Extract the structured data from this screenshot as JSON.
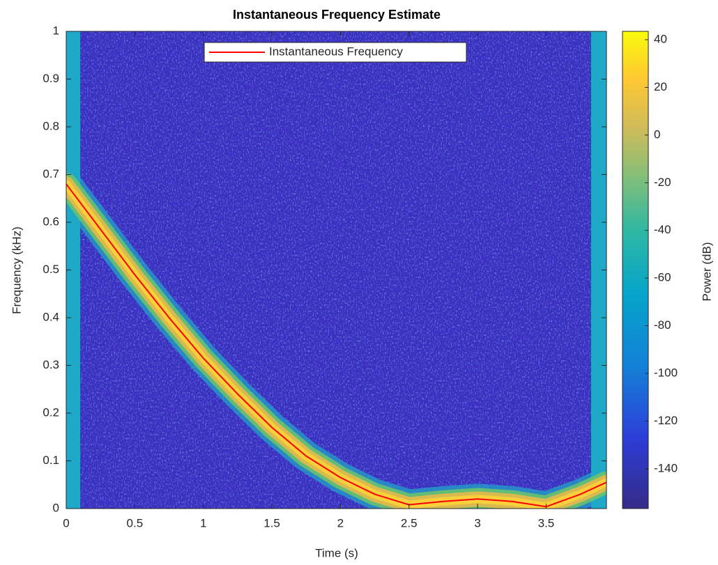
{
  "chart_data": {
    "type": "line",
    "title": "Instantaneous Frequency Estimate",
    "xlabel": "Time (s)",
    "ylabel": "Frequency (kHz)",
    "colorbar_label": "Power (dB)",
    "x": [
      0,
      0.25,
      0.5,
      0.75,
      1,
      1.25,
      1.5,
      1.75,
      2,
      2.25,
      2.5,
      2.75,
      3,
      3.25,
      3.5,
      3.75,
      3.94
    ],
    "series": [
      {
        "name": "Instantaneous Frequency",
        "color": "#ff0000",
        "values": [
          0.68,
          0.585,
          0.49,
          0.4,
          0.315,
          0.24,
          0.17,
          0.11,
          0.065,
          0.03,
          0.008,
          0.015,
          0.02,
          0.015,
          0.004,
          0.03,
          0.055
        ]
      }
    ],
    "xlim": [
      0,
      3.94
    ],
    "ylim": [
      0,
      1
    ],
    "xticks": [
      0,
      0.5,
      1,
      1.5,
      2,
      2.5,
      3,
      3.5
    ],
    "yticks": [
      0,
      0.1,
      0.2,
      0.3,
      0.4,
      0.5,
      0.6,
      0.7,
      0.8,
      0.9,
      1
    ],
    "clim": [
      -156.7,
      43.5
    ],
    "cticks": [
      -140,
      -120,
      -100,
      -80,
      -60,
      -40,
      -20,
      0,
      20,
      40
    ],
    "legend": "top"
  }
}
